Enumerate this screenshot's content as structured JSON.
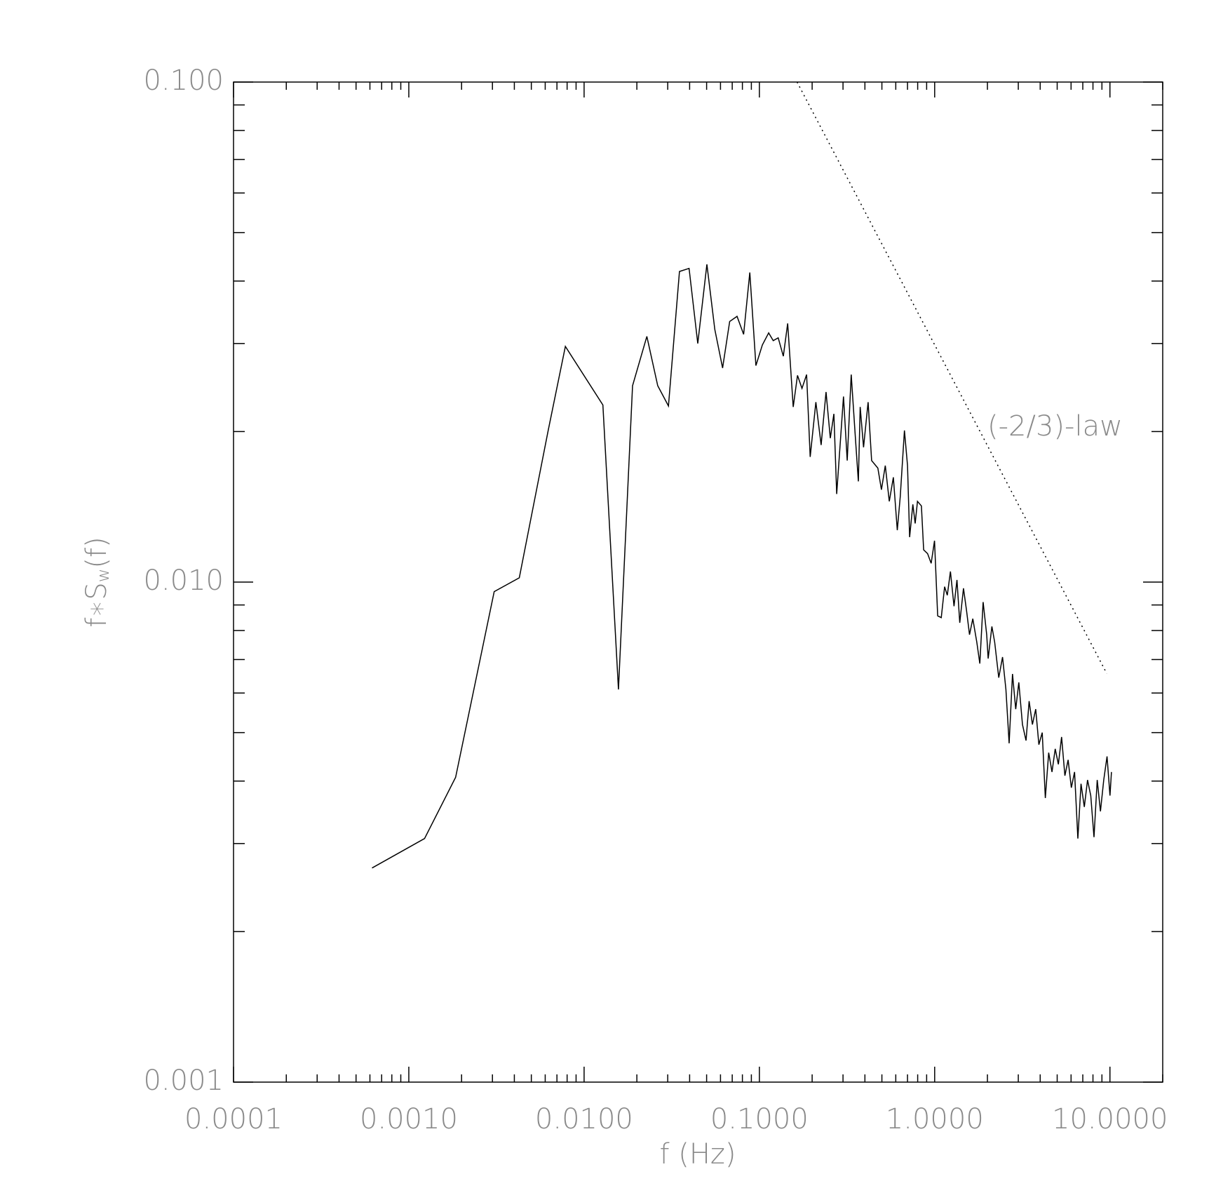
{
  "chart_data": {
    "type": "line",
    "x_label": "f (Hz)",
    "y_label": "f∗S",
    "y_label_sub": "w",
    "y_label_end": "(f)",
    "annotation": "(-2/3)-law",
    "xlog": true,
    "ylog": true,
    "xlim": [
      0.0001,
      20
    ],
    "ylim": [
      0.001,
      0.1
    ],
    "xticks": [
      {
        "value": 0.0001,
        "label": "0.0001"
      },
      {
        "value": 0.001,
        "label": "0.0010"
      },
      {
        "value": 0.01,
        "label": "0.0100"
      },
      {
        "value": 0.1,
        "label": "0.1000"
      },
      {
        "value": 1,
        "label": "1.0000"
      },
      {
        "value": 10,
        "label": "10.0000"
      }
    ],
    "yticks": [
      {
        "value": 0.001,
        "label": "0.001"
      },
      {
        "value": 0.01,
        "label": "0.010"
      },
      {
        "value": 0.1,
        "label": "0.100"
      }
    ],
    "series": [
      {
        "color": "#000000",
        "dash": "solid",
        "x": [
          0.000617,
          0.00123,
          0.00185,
          0.00307,
          0.00427,
          0.00624,
          0.00782,
          0.0128,
          0.0157,
          0.0189,
          0.0228,
          0.0263,
          0.0303,
          0.035,
          0.0397,
          0.0445,
          0.0502,
          0.0557,
          0.0617,
          0.0677,
          0.0746,
          0.0813,
          0.0882,
          0.0955,
          0.104,
          0.113,
          0.12,
          0.128,
          0.137,
          0.145,
          0.156,
          0.165,
          0.175,
          0.186,
          0.195,
          0.21,
          0.225,
          0.24,
          0.254,
          0.266,
          0.276,
          0.302,
          0.317,
          0.334,
          0.353,
          0.367,
          0.376,
          0.393,
          0.417,
          0.437,
          0.474,
          0.497,
          0.523,
          0.551,
          0.581,
          0.612,
          0.636,
          0.672,
          0.7,
          0.72,
          0.751,
          0.774,
          0.798,
          0.84,
          0.865,
          0.911,
          0.955,
          0.998,
          1.04,
          1.09,
          1.14,
          1.18,
          1.23,
          1.29,
          1.34,
          1.39,
          1.46,
          1.52,
          1.58,
          1.65,
          1.74,
          1.81,
          1.89,
          1.98,
          2.02,
          2.12,
          2.2,
          2.32,
          2.44,
          2.55,
          2.66,
          2.78,
          2.9,
          3.02,
          3.17,
          3.32,
          3.46,
          3.61,
          3.77,
          3.93,
          4.11,
          4.28,
          4.47,
          4.67,
          4.87,
          5.08,
          5.3,
          5.53,
          5.77,
          6.02,
          6.28,
          6.56,
          6.84,
          7.14,
          7.45,
          7.77,
          8.11,
          8.46,
          8.83,
          9.22,
          9.62,
          10.0,
          10.2
        ],
        "values": [
          0.00268,
          0.00307,
          0.00407,
          0.00957,
          0.0102,
          0.0201,
          0.0296,
          0.0226,
          0.0061,
          0.0247,
          0.031,
          0.0247,
          0.0225,
          0.0418,
          0.0424,
          0.03,
          0.0432,
          0.032,
          0.0268,
          0.0332,
          0.034,
          0.0313,
          0.0416,
          0.0271,
          0.0298,
          0.0315,
          0.0304,
          0.0308,
          0.0283,
          0.0329,
          0.0224,
          0.0259,
          0.0244,
          0.026,
          0.0178,
          0.0229,
          0.0188,
          0.024,
          0.0194,
          0.0217,
          0.015,
          0.0235,
          0.0175,
          0.026,
          0.0194,
          0.0159,
          0.0224,
          0.0186,
          0.0229,
          0.0175,
          0.0169,
          0.0153,
          0.0171,
          0.0145,
          0.0162,
          0.0127,
          0.0148,
          0.0201,
          0.0171,
          0.0123,
          0.0143,
          0.0131,
          0.0145,
          0.0142,
          0.0116,
          0.0114,
          0.0109,
          0.0121,
          0.00856,
          0.00849,
          0.00979,
          0.00941,
          0.0105,
          0.00895,
          0.0101,
          0.00829,
          0.00972,
          0.00876,
          0.00785,
          0.00845,
          0.00758,
          0.00687,
          0.00912,
          0.00785,
          0.00703,
          0.00815,
          0.00758,
          0.00644,
          0.00708,
          0.0061,
          0.00476,
          0.00655,
          0.00557,
          0.0063,
          0.00519,
          0.00482,
          0.00578,
          0.00519,
          0.00557,
          0.00473,
          0.005,
          0.0037,
          0.00456,
          0.00417,
          0.00464,
          0.00432,
          0.0049,
          0.0041,
          0.00441,
          0.00388,
          0.00417,
          0.00307,
          0.00395,
          0.00355,
          0.00402,
          0.00374,
          0.00309,
          0.00402,
          0.00348,
          0.00402,
          0.00448,
          0.00374,
          0.00417
        ]
      },
      {
        "color": "#000000",
        "dash": "dotted",
        "x": [
          0.164,
          9.6
        ],
        "values": [
          0.1,
          0.00656
        ]
      }
    ]
  }
}
